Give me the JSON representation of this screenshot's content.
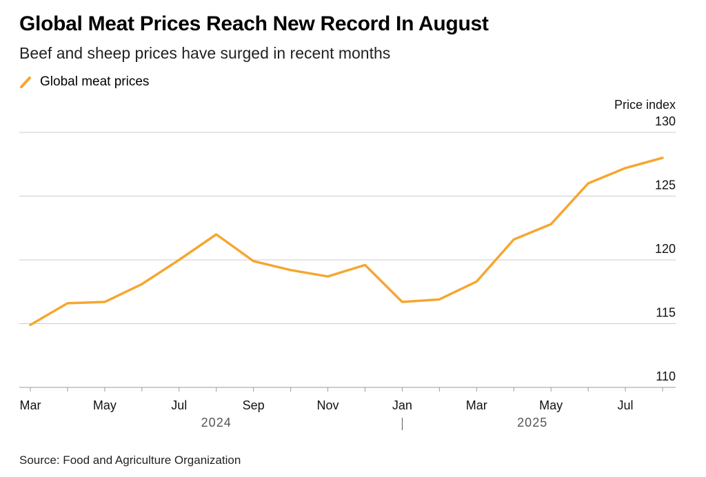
{
  "title": "Global Meat Prices Reach New Record In August",
  "subtitle": "Beef and sheep prices have surged in recent months",
  "source": "Source: Food and Agriculture Organization",
  "colors": {
    "series": "#f6a630",
    "grid": "#cccccc"
  },
  "chart_data": {
    "type": "line",
    "title": "Global Meat Prices Reach New Record In August",
    "ylabel": "Price index",
    "ylim": [
      110,
      130
    ],
    "yticks": [
      110,
      115,
      120,
      125,
      130
    ],
    "x": [
      "2024-03",
      "2024-04",
      "2024-05",
      "2024-06",
      "2024-07",
      "2024-08",
      "2024-09",
      "2024-10",
      "2024-11",
      "2024-12",
      "2025-01",
      "2025-02",
      "2025-03",
      "2025-04",
      "2025-05",
      "2025-06",
      "2025-07",
      "2025-08"
    ],
    "xtick_labels": [
      "Mar",
      "",
      "May",
      "",
      "Jul",
      "",
      "Sep",
      "",
      "Nov",
      "",
      "Jan",
      "",
      "Mar",
      "",
      "May",
      "",
      "Jul",
      ""
    ],
    "year_labels": [
      {
        "label": "2024",
        "center_index": 5
      },
      {
        "label": "2025",
        "center_index": 13.5
      }
    ],
    "year_divider_index": 10,
    "legend": "top-left",
    "grid": true,
    "series": [
      {
        "name": "Global meat prices",
        "values": [
          114.9,
          116.6,
          116.7,
          118.1,
          120.0,
          122.0,
          119.9,
          119.2,
          118.7,
          119.6,
          116.7,
          116.9,
          118.3,
          121.6,
          122.8,
          126.0,
          127.2,
          128.0
        ]
      }
    ]
  }
}
